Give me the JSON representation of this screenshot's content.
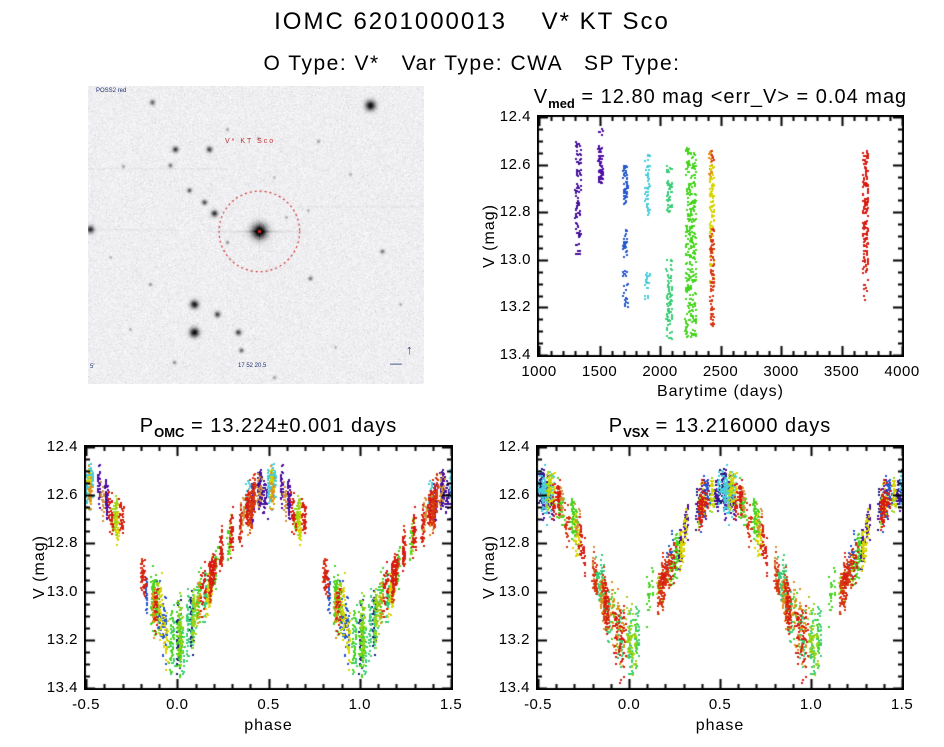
{
  "page": {
    "title": "IOMC 6201000013    V* KT Sco",
    "subtitle": "O Type: V*   Var Type: CWA   SP Type:"
  },
  "finder": {
    "survey_label": "POSS2 red",
    "star_label": "V* KT Sco",
    "scale_label": "5'",
    "coord_label": "17 52 20.5",
    "compass_north_glyph": "↑",
    "compass_east_glyph": "—",
    "circle_color": "#d03030",
    "circle_center": [
      0.51,
      0.488
    ],
    "circle_radius": 0.12,
    "stars": [
      [
        0.509,
        0.487,
        5.2,
        1.05
      ],
      [
        0.84,
        0.065,
        3.5,
        0.95
      ],
      [
        0.19,
        0.055,
        1.8,
        0.55
      ],
      [
        0.26,
        0.21,
        2.0,
        0.75
      ],
      [
        0.36,
        0.21,
        2.0,
        0.7
      ],
      [
        0.245,
        0.265,
        1.5,
        0.5
      ],
      [
        0.105,
        0.27,
        1.2,
        0.35
      ],
      [
        0.3,
        0.35,
        1.6,
        0.6
      ],
      [
        0.345,
        0.39,
        1.8,
        0.65
      ],
      [
        0.375,
        0.425,
        2.2,
        0.8
      ],
      [
        0.005,
        0.48,
        2.5,
        0.8
      ],
      [
        0.415,
        0.525,
        1.2,
        0.4
      ],
      [
        0.66,
        0.645,
        1.5,
        0.5
      ],
      [
        0.315,
        0.73,
        2.8,
        0.9
      ],
      [
        0.385,
        0.765,
        2.0,
        0.7
      ],
      [
        0.315,
        0.825,
        3.2,
        0.95
      ],
      [
        0.445,
        0.825,
        2.0,
        0.7
      ],
      [
        0.455,
        0.885,
        1.6,
        0.55
      ],
      [
        0.185,
        0.665,
        1.2,
        0.4
      ],
      [
        0.875,
        0.555,
        1.5,
        0.5
      ],
      [
        0.685,
        0.185,
        1.2,
        0.35
      ],
      [
        0.78,
        0.295,
        1.1,
        0.3
      ],
      [
        0.415,
        0.145,
        1.1,
        0.3
      ],
      [
        0.505,
        0.175,
        1.1,
        0.35
      ],
      [
        0.255,
        0.925,
        1.3,
        0.4
      ],
      [
        0.59,
        0.44,
        1.0,
        0.3
      ],
      [
        0.125,
        0.815,
        1.0,
        0.3
      ],
      [
        0.555,
        0.975,
        1.2,
        0.35
      ],
      [
        0.065,
        0.575,
        1.0,
        0.3
      ],
      [
        0.735,
        0.875,
        1.0,
        0.3
      ],
      [
        0.93,
        0.73,
        1.1,
        0.3
      ],
      [
        0.555,
        0.305,
        1.0,
        0.25
      ],
      [
        0.655,
        0.415,
        1.0,
        0.25
      ]
    ]
  },
  "chart_data": [
    {
      "type": "scatter",
      "title": {
        "prefix": "V",
        "sub": "med",
        "rest": " = 12.80 mag <err_V> = 0.04 mag"
      },
      "xlabel": "Barytime (days)",
      "ylabel": "V (mag)",
      "xlim": [
        1000,
        4000
      ],
      "ylim": [
        12.4,
        13.4
      ],
      "xticks": [
        "1000",
        "1500",
        "2000",
        "2500",
        "3000",
        "3500",
        "4000"
      ],
      "yticks": [
        "12.4",
        "12.6",
        "12.8",
        "13.0",
        "13.2",
        "13.4"
      ],
      "x_minor_step": 100,
      "y_minor_step": 0.05,
      "seed": 42,
      "epochs": [
        {
          "t": 1325,
          "dt": 25,
          "color": "#46109c",
          "segments": [
            [
              12.5,
              12.94,
              85
            ],
            [
              12.95,
              12.98,
              5
            ]
          ]
        },
        {
          "t": 1510,
          "dt": 20,
          "color": "#500fa8",
          "segments": [
            [
              12.44,
              12.48,
              6
            ],
            [
              12.52,
              12.68,
              65
            ]
          ]
        },
        {
          "t": 1715,
          "dt": 20,
          "color": "#2458cc",
          "segments": [
            [
              12.6,
              12.77,
              55
            ],
            [
              12.87,
              12.99,
              28
            ],
            [
              13.03,
              13.07,
              7
            ],
            [
              13.1,
              13.2,
              16
            ]
          ]
        },
        {
          "t": 1895,
          "dt": 20,
          "color": "#48ccd8",
          "segments": [
            [
              12.56,
              12.82,
              48
            ],
            [
              13.04,
              13.13,
              18
            ],
            [
              13.15,
              13.18,
              5
            ]
          ]
        },
        {
          "t": 2078,
          "dt": 25,
          "color": "#38cc74",
          "segments": [
            [
              12.6,
              12.8,
              50
            ],
            [
              12.99,
              13.05,
              9
            ],
            [
              13.06,
              13.26,
              65
            ],
            [
              13.27,
              13.34,
              10
            ]
          ]
        },
        {
          "t": 2255,
          "dt": 45,
          "color": "#44d41c",
          "segments": [
            [
              12.53,
              12.84,
              120
            ],
            [
              12.85,
              13.02,
              70
            ],
            [
              13.03,
              13.33,
              120
            ]
          ]
        },
        {
          "t": 2420,
          "dt": 15,
          "color": "#e09018",
          "segments": [
            [
              12.54,
              12.66,
              25
            ]
          ]
        },
        {
          "t": 2428,
          "dt": 18,
          "color": "#d8d400",
          "segments": [
            [
              12.6,
              12.92,
              70
            ],
            [
              12.95,
              13.1,
              20
            ]
          ]
        },
        {
          "t": 2432,
          "dt": 15,
          "color": "#d83410",
          "segments": [
            [
              12.86,
              13.28,
              90
            ],
            [
              12.54,
              12.6,
              6
            ]
          ]
        },
        {
          "t": 3700,
          "dt": 22,
          "color": "#d81c10",
          "segments": [
            [
              12.54,
              12.92,
              110
            ],
            [
              12.92,
              13.06,
              35
            ],
            [
              13.08,
              13.17,
              8
            ]
          ]
        }
      ]
    },
    {
      "type": "folded",
      "title": {
        "prefix": "P",
        "sub": "OMC",
        "rest": " = 13.224±0.001 days"
      },
      "xlabel": "phase",
      "ylabel": "V (mag)",
      "xlim": [
        -0.5,
        1.5
      ],
      "ylim": [
        12.4,
        13.4
      ],
      "xticks": [
        "-0.5",
        "0.0",
        "0.5",
        "1.0",
        "1.5"
      ],
      "yticks": [
        "12.4",
        "12.6",
        "12.8",
        "13.0",
        "13.2",
        "13.4"
      ],
      "x_minor_step": 0.1,
      "y_minor_step": 0.05,
      "seed": 7011,
      "smear": 1.0,
      "curve": [
        [
          0.0,
          13.2
        ],
        [
          0.05,
          13.18
        ],
        [
          0.1,
          13.08
        ],
        [
          0.15,
          13.0
        ],
        [
          0.2,
          12.93
        ],
        [
          0.25,
          12.85
        ],
        [
          0.3,
          12.77
        ],
        [
          0.35,
          12.7
        ],
        [
          0.4,
          12.64
        ],
        [
          0.45,
          12.6
        ],
        [
          0.5,
          12.575
        ],
        [
          0.55,
          12.59
        ],
        [
          0.6,
          12.62
        ],
        [
          0.65,
          12.67
        ],
        [
          0.7,
          12.72
        ],
        [
          0.75,
          12.82
        ],
        [
          0.8,
          12.9
        ],
        [
          0.85,
          13.0
        ],
        [
          0.9,
          13.1
        ],
        [
          0.95,
          13.17
        ],
        [
          1.0,
          13.2
        ]
      ],
      "epochs": [
        {
          "color": "#46109c",
          "stripes": 5,
          "pref": 0.45,
          "spread": 0.35
        },
        {
          "color": "#500fa8",
          "stripes": 3,
          "pref": 0.5,
          "spread": 0.3
        },
        {
          "color": "#18207c",
          "stripes": 2
        },
        {
          "color": "#2458cc",
          "stripes": 3
        },
        {
          "color": "#48ccd8",
          "stripes": 4,
          "pref": 0.5,
          "spread": 0.25
        },
        {
          "color": "#38cc74",
          "stripes": 6,
          "pref": 0.0,
          "spread": 0.35
        },
        {
          "color": "#44d41c",
          "stripes": 9,
          "pref": 0.95,
          "spread": 0.7
        },
        {
          "color": "#9cd414",
          "stripes": 7
        },
        {
          "color": "#d8d400",
          "stripes": 6
        },
        {
          "color": "#d2913c",
          "stripes": 3,
          "pref": 0.6,
          "spread": 0.5
        },
        {
          "color": "#e09018",
          "stripes": 4
        },
        {
          "color": "#d83410",
          "stripes": 7,
          "pref": 0.05,
          "spread": 0.8
        },
        {
          "color": "#d81c10",
          "stripes": 11
        }
      ]
    },
    {
      "type": "folded",
      "title": {
        "prefix": "P",
        "sub": "VSX",
        "rest": " = 13.216000 days"
      },
      "xlabel": "phase",
      "ylabel": "V (mag)",
      "xlim": [
        -0.5,
        1.5
      ],
      "ylim": [
        12.4,
        13.4
      ],
      "xticks": [
        "-0.5",
        "0.0",
        "0.5",
        "1.0",
        "1.5"
      ],
      "yticks": [
        "12.4",
        "12.6",
        "12.8",
        "13.0",
        "13.2",
        "13.4"
      ],
      "x_minor_step": 0.1,
      "y_minor_step": 0.05,
      "seed": 5189,
      "smear": 1.4,
      "curve": [
        [
          0.0,
          13.2
        ],
        [
          0.05,
          13.18
        ],
        [
          0.1,
          13.08
        ],
        [
          0.15,
          13.0
        ],
        [
          0.2,
          12.93
        ],
        [
          0.25,
          12.85
        ],
        [
          0.3,
          12.77
        ],
        [
          0.35,
          12.7
        ],
        [
          0.4,
          12.64
        ],
        [
          0.45,
          12.6
        ],
        [
          0.5,
          12.575
        ],
        [
          0.55,
          12.59
        ],
        [
          0.6,
          12.62
        ],
        [
          0.65,
          12.67
        ],
        [
          0.7,
          12.72
        ],
        [
          0.75,
          12.82
        ],
        [
          0.8,
          12.9
        ],
        [
          0.85,
          13.0
        ],
        [
          0.9,
          13.1
        ],
        [
          0.95,
          13.17
        ],
        [
          1.0,
          13.2
        ]
      ],
      "epochs": [
        {
          "color": "#46109c",
          "stripes": 5,
          "pref": 0.45,
          "spread": 0.35
        },
        {
          "color": "#500fa8",
          "stripes": 3,
          "pref": 0.5,
          "spread": 0.3
        },
        {
          "color": "#18207c",
          "stripes": 2
        },
        {
          "color": "#2458cc",
          "stripes": 3
        },
        {
          "color": "#48ccd8",
          "stripes": 4,
          "pref": 0.5,
          "spread": 0.25
        },
        {
          "color": "#38cc74",
          "stripes": 6,
          "pref": 0.0,
          "spread": 0.35
        },
        {
          "color": "#44d41c",
          "stripes": 9,
          "pref": 0.95,
          "spread": 0.7
        },
        {
          "color": "#9cd414",
          "stripes": 7
        },
        {
          "color": "#d8d400",
          "stripes": 6
        },
        {
          "color": "#d2913c",
          "stripes": 3,
          "pref": 0.6,
          "spread": 0.5
        },
        {
          "color": "#e09018",
          "stripes": 4
        },
        {
          "color": "#d83410",
          "stripes": 7,
          "pref": 0.05,
          "spread": 0.8
        },
        {
          "color": "#d81c10",
          "stripes": 11
        }
      ]
    }
  ]
}
